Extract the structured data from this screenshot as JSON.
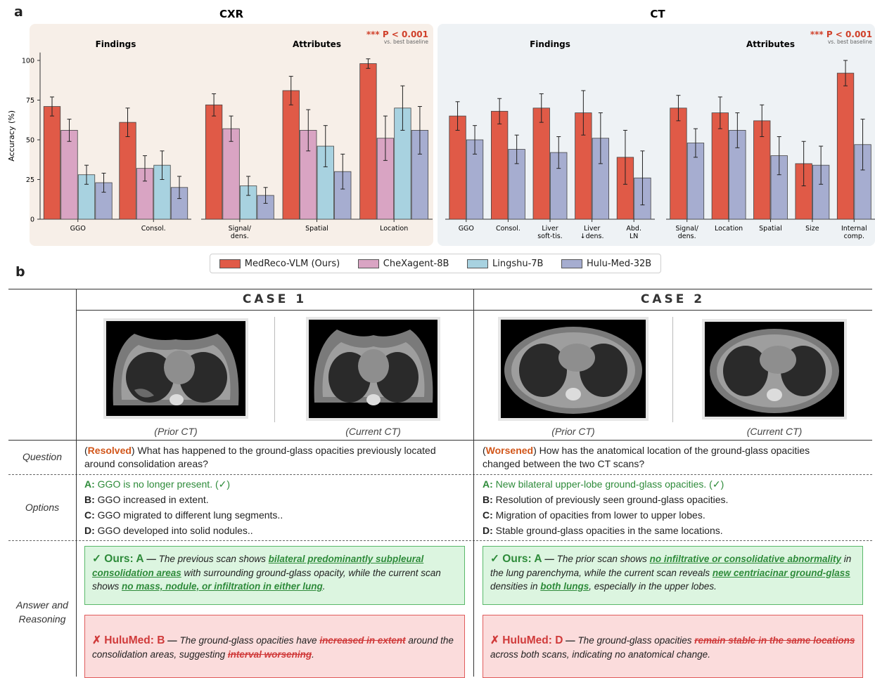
{
  "panel_a_label": "a",
  "panel_b_label": "b",
  "chart_data": [
    {
      "type": "bar",
      "group": "CXR",
      "subtitle": "Findings",
      "ylabel": "Accuracy (%)",
      "ylim": [
        0,
        105
      ],
      "yticks": [
        0,
        25,
        50,
        75,
        100
      ],
      "categories": [
        "GGO",
        "Consol."
      ],
      "series": [
        {
          "name": "MedReco-VLM (Ours)",
          "values": [
            71,
            61
          ],
          "err": [
            6,
            9
          ]
        },
        {
          "name": "CheXagent-8B",
          "values": [
            56,
            32
          ],
          "err": [
            7,
            8
          ]
        },
        {
          "name": "Lingshu-7B",
          "values": [
            28,
            34
          ],
          "err": [
            6,
            9
          ]
        },
        {
          "name": "Hulu-Med-32B",
          "values": [
            23,
            20
          ],
          "err": [
            6,
            7
          ]
        }
      ]
    },
    {
      "type": "bar",
      "group": "CXR",
      "subtitle": "Attributes",
      "ylim": [
        0,
        105
      ],
      "categories": [
        "Signal/\ndens.",
        "Spatial",
        "Location"
      ],
      "series": [
        {
          "name": "MedReco-VLM (Ours)",
          "values": [
            72,
            81,
            98
          ],
          "err": [
            7,
            9,
            3
          ]
        },
        {
          "name": "CheXagent-8B",
          "values": [
            57,
            56,
            51
          ],
          "err": [
            8,
            13,
            14
          ]
        },
        {
          "name": "Lingshu-7B",
          "values": [
            21,
            46,
            70
          ],
          "err": [
            6,
            13,
            14
          ]
        },
        {
          "name": "Hulu-Med-32B",
          "values": [
            15,
            30,
            56
          ],
          "err": [
            5,
            11,
            15
          ]
        }
      ],
      "annotation": "*** P < 0.001",
      "annotation_sub": "vs. best baseline"
    },
    {
      "type": "bar",
      "group": "CT",
      "subtitle": "Findings",
      "ylim": [
        0,
        105
      ],
      "categories": [
        "GGO",
        "Consol.",
        "Liver\nsoft-tis.",
        "Liver\n↓dens.",
        "Abd.\nLN"
      ],
      "series": [
        {
          "name": "MedReco-VLM (Ours)",
          "values": [
            65,
            68,
            70,
            67,
            39
          ],
          "err": [
            9,
            8,
            9,
            14,
            17
          ]
        },
        {
          "name": "Hulu-Med-32B",
          "values": [
            50,
            44,
            42,
            51,
            26
          ],
          "err": [
            9,
            9,
            10,
            16,
            17
          ]
        }
      ]
    },
    {
      "type": "bar",
      "group": "CT",
      "subtitle": "Attributes",
      "ylim": [
        0,
        105
      ],
      "categories": [
        "Signal/\ndens.",
        "Location",
        "Spatial",
        "Size",
        "Internal\ncomp."
      ],
      "series": [
        {
          "name": "MedReco-VLM (Ours)",
          "values": [
            70,
            67,
            62,
            35,
            92
          ],
          "err": [
            8,
            10,
            10,
            14,
            8
          ]
        },
        {
          "name": "Hulu-Med-32B",
          "values": [
            48,
            56,
            40,
            34,
            47
          ],
          "err": [
            9,
            11,
            12,
            12,
            16
          ]
        }
      ],
      "annotation": "*** P < 0.001",
      "annotation_sub": "vs. best baseline"
    }
  ],
  "group_titles": {
    "cxr": "CXR",
    "ct": "CT"
  },
  "legend": [
    {
      "label": "MedReco-VLM (Ours)",
      "color": "#e05a47"
    },
    {
      "label": "CheXagent-8B",
      "color": "#d9a4c3"
    },
    {
      "label": "Lingshu-7B",
      "color": "#a8d2e0"
    },
    {
      "label": "Hulu-Med-32B",
      "color": "#a6add0"
    }
  ],
  "colors": {
    "ours": "#e05a47",
    "chex": "#d9a4c3",
    "lingshu": "#a8d2e0",
    "hulu": "#a6add0",
    "cxr_bg": "#f7efe8",
    "ct_bg": "#eef2f5",
    "sig": "#d0402a"
  },
  "table": {
    "case1_title": "CASE 1",
    "case2_title": "CASE 2",
    "captions": {
      "prior": "(Prior CT)",
      "current": "(Current CT)"
    },
    "row_labels": {
      "question": "Question",
      "options": "Options",
      "answer_line1": "Answer and",
      "answer_line2": "Reasoning"
    },
    "case1": {
      "q_tag": "Resolved",
      "q_text_1": ") What has happened to the ground-glass opacities previously located",
      "q_text_2": "around consolidation areas?",
      "options": [
        {
          "key": "A:",
          "text": "GGO is no longer present. (✓)"
        },
        {
          "key": "B:",
          "text": "GGO increased in extent."
        },
        {
          "key": "C:",
          "text": "GGO migrated to different lung segments.."
        },
        {
          "key": "D:",
          "text": "GGO developed into solid nodules.."
        }
      ],
      "ours_head": "✓ Ours: A",
      "ours_parts": [
        "The previous scan shows ",
        "bilateral predominantly subpleural consolidation areas",
        " with surrounding ground-glass opacity, while the current scan shows ",
        "no mass, nodule, or infiltration in either lung",
        "."
      ],
      "bad_head": "✗ HuluMed: B",
      "bad_parts": [
        "The ground-glass opacities have ",
        "increased in extent",
        " around the consolidation areas, suggesting ",
        "interval worsening",
        "."
      ]
    },
    "case2": {
      "q_tag": "Worsened",
      "q_text_1": ") How has the anatomical location of the ground-glass opacities",
      "q_text_2": "changed between the two CT scans?",
      "options": [
        {
          "key": "A:",
          "text": "New bilateral upper-lobe ground-glass opacities. (✓)"
        },
        {
          "key": "B:",
          "text": "Resolution of previously seen ground-glass opacities."
        },
        {
          "key": "C:",
          "text": "Migration of opacities from lower to upper lobes."
        },
        {
          "key": "D:",
          "text": "Stable ground-glass opacities in the same locations."
        }
      ],
      "ours_head": "✓ Ours: A",
      "ours_parts": [
        "The prior scan shows ",
        "no infiltrative or consolidative abnormality",
        " in the lung parenchyma, while the current scan reveals ",
        "new centriacinar ground-glass",
        " densities in ",
        "both lungs",
        ", especially in the upper lobes."
      ],
      "bad_head": "✗ HuluMed: D",
      "bad_parts": [
        "The ground-glass opacities ",
        "remain stable in the same locations",
        " across both scans, indicating no anatomical change."
      ]
    }
  }
}
